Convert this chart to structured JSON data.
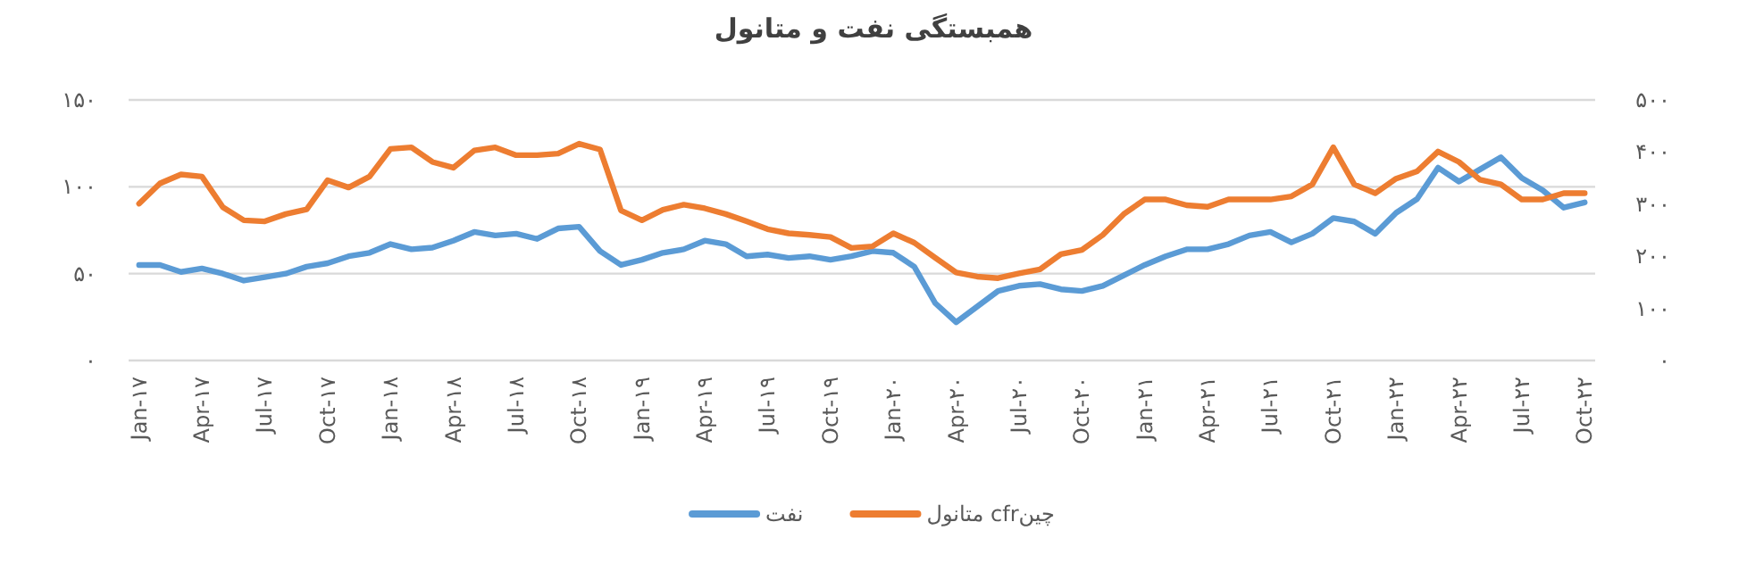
{
  "chart_data": {
    "type": "line",
    "title": "همبستگی نفت و متانول",
    "categories": [
      "Jan-۱۷",
      null,
      null,
      "Apr-۱۷",
      null,
      null,
      "Jul-۱۷",
      null,
      null,
      "Oct-۱۷",
      null,
      null,
      "Jan-۱۸",
      null,
      null,
      "Apr-۱۸",
      null,
      null,
      "Jul-۱۸",
      null,
      null,
      "Oct-۱۸",
      null,
      null,
      "Jan-۱۹",
      null,
      null,
      "Apr-۱۹",
      null,
      null,
      "Jul-۱۹",
      null,
      null,
      "Oct-۱۹",
      null,
      null,
      "Jan-۲۰",
      null,
      null,
      "Apr-۲۰",
      null,
      null,
      "Jul-۲۰",
      null,
      null,
      "Oct-۲۰",
      null,
      null,
      "Jan-۲۱",
      null,
      null,
      "Apr-۲۱",
      null,
      null,
      "Jul-۲۱",
      null,
      null,
      "Oct-۲۱",
      null,
      null,
      "Jan-۲۲",
      null,
      null,
      "Apr-۲۲",
      null,
      null,
      "Jul-۲۲",
      null,
      null,
      "Oct-۲۲"
    ],
    "series": [
      {
        "name": "نفت",
        "color": "#5b9bd5",
        "values": [
          55,
          55,
          51,
          53,
          50,
          46,
          48,
          50,
          54,
          56,
          60,
          62,
          67,
          64,
          65,
          69,
          74,
          72,
          73,
          70,
          76,
          77,
          63,
          55,
          58,
          62,
          64,
          69,
          67,
          60,
          61,
          59,
          60,
          58,
          60,
          63,
          62,
          54,
          33,
          22,
          31,
          40,
          43,
          44,
          41,
          40,
          43,
          49,
          55,
          60,
          64,
          64,
          67,
          72,
          74,
          68,
          73,
          82,
          80,
          73,
          85,
          93,
          111,
          103,
          110,
          117,
          105,
          98,
          88,
          91
        ]
      },
      {
        "name": "متانول cfrچین",
        "color": "#ed7d31",
        "axis": "y2",
        "values": [
          301,
          340,
          357,
          353,
          294,
          269,
          267,
          281,
          290,
          346,
          332,
          353,
          406,
          409,
          381,
          370,
          403,
          409,
          394,
          394,
          397,
          416,
          405,
          288,
          269,
          289,
          299,
          292,
          281,
          267,
          252,
          244,
          241,
          237,
          216,
          219,
          244,
          226,
          197,
          169,
          161,
          158,
          167,
          175,
          204,
          212,
          241,
          281,
          309,
          309,
          298,
          295,
          309,
          309,
          309,
          315,
          338,
          409,
          338,
          321,
          349,
          363,
          401,
          381,
          347,
          338,
          309,
          309,
          321,
          321
        ]
      }
    ],
    "ylim": [
      0,
      150
    ],
    "yticks": [
      {
        "value": 0,
        "label": "۰"
      },
      {
        "value": 50,
        "label": "۵۰"
      },
      {
        "value": 100,
        "label": "۱۰۰"
      },
      {
        "value": 150,
        "label": "۱۵۰"
      }
    ],
    "y2lim": [
      0,
      500
    ],
    "y2ticks": [
      {
        "value": 0,
        "label": "۰"
      },
      {
        "value": 100,
        "label": "۱۰۰"
      },
      {
        "value": 200,
        "label": "۲۰۰"
      },
      {
        "value": 300,
        "label": "۳۰۰"
      },
      {
        "value": 400,
        "label": "۴۰۰"
      },
      {
        "value": 500,
        "label": "۵۰۰"
      }
    ],
    "grid": "y",
    "legend": "bottom"
  }
}
